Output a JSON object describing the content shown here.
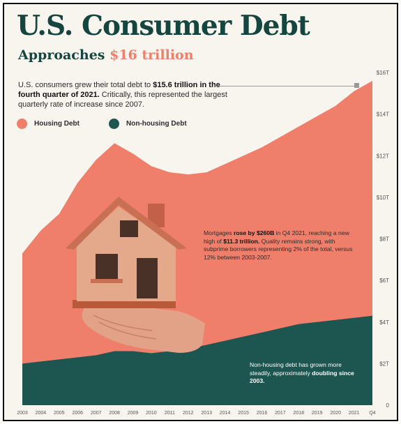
{
  "header": {
    "title": "U.S. Consumer Debt",
    "subtitle_prefix": "Approaches",
    "subtitle_highlight": "$16 trillion"
  },
  "intro": {
    "part1": "U.S. consumers grew their total debt to ",
    "bold": "$15.6 trillion in the fourth quarter of 2021.",
    "part2": " Critically, this represented the largest quarterly rate of increase since 2007."
  },
  "legend": {
    "housing": "Housing Debt",
    "nonhousing": "Non-housing Debt"
  },
  "annotations": {
    "mortgage": {
      "p1": "Mortgages ",
      "b1": "rose by $260B",
      "p2": " in Q4 2021, reaching a new high of ",
      "b2": "$11.3 trillion.",
      "p3": " Quality remains strong, with subprime borrowers representing 2% of the total, versus 12% between 2003-2007."
    },
    "nonhousing": {
      "p1": "Non-housing debt has grown more steadily, approximately ",
      "b1": "doubling since 2003."
    }
  },
  "illustration": {
    "name": "house on hand"
  },
  "colors": {
    "housing": "#ef7f6a",
    "nonhousing": "#1d5550",
    "title": "#15453f",
    "background": "#f8f4ee"
  },
  "chart_data": {
    "type": "area",
    "stacked": true,
    "x_labels": [
      "2003",
      "2004",
      "2005",
      "2006",
      "2007",
      "2008",
      "2009",
      "2010",
      "2011",
      "2012",
      "2013",
      "2014",
      "2015",
      "2016",
      "2017",
      "2018",
      "2019",
      "2020",
      "2021",
      "Q4"
    ],
    "x": [
      "2003",
      "2004",
      "2005",
      "2006",
      "2007",
      "2008",
      "2009",
      "2010",
      "2011",
      "2012",
      "2013",
      "2014",
      "2015",
      "2016",
      "2017",
      "2018",
      "2019",
      "2020",
      "2021",
      "2021 Q4"
    ],
    "series": [
      {
        "name": "Non-housing Debt",
        "values": [
          2.0,
          2.1,
          2.2,
          2.3,
          2.4,
          2.6,
          2.6,
          2.5,
          2.6,
          2.7,
          2.9,
          3.1,
          3.3,
          3.5,
          3.7,
          3.9,
          4.0,
          4.1,
          4.2,
          4.3
        ]
      },
      {
        "name": "Housing Debt",
        "values": [
          5.3,
          6.3,
          7.0,
          8.4,
          9.4,
          10.0,
          9.5,
          9.0,
          8.6,
          8.4,
          8.3,
          8.5,
          8.7,
          8.9,
          9.2,
          9.5,
          9.9,
          10.3,
          10.9,
          11.3
        ]
      }
    ],
    "y_ticks": [
      "0",
      "$2T",
      "$4T",
      "$6T",
      "$8T",
      "$10T",
      "$12T",
      "$14T",
      "$16T"
    ],
    "ylim": [
      0,
      16
    ],
    "y_axis_position": "right",
    "legend_position": "top-left",
    "grid": false
  }
}
